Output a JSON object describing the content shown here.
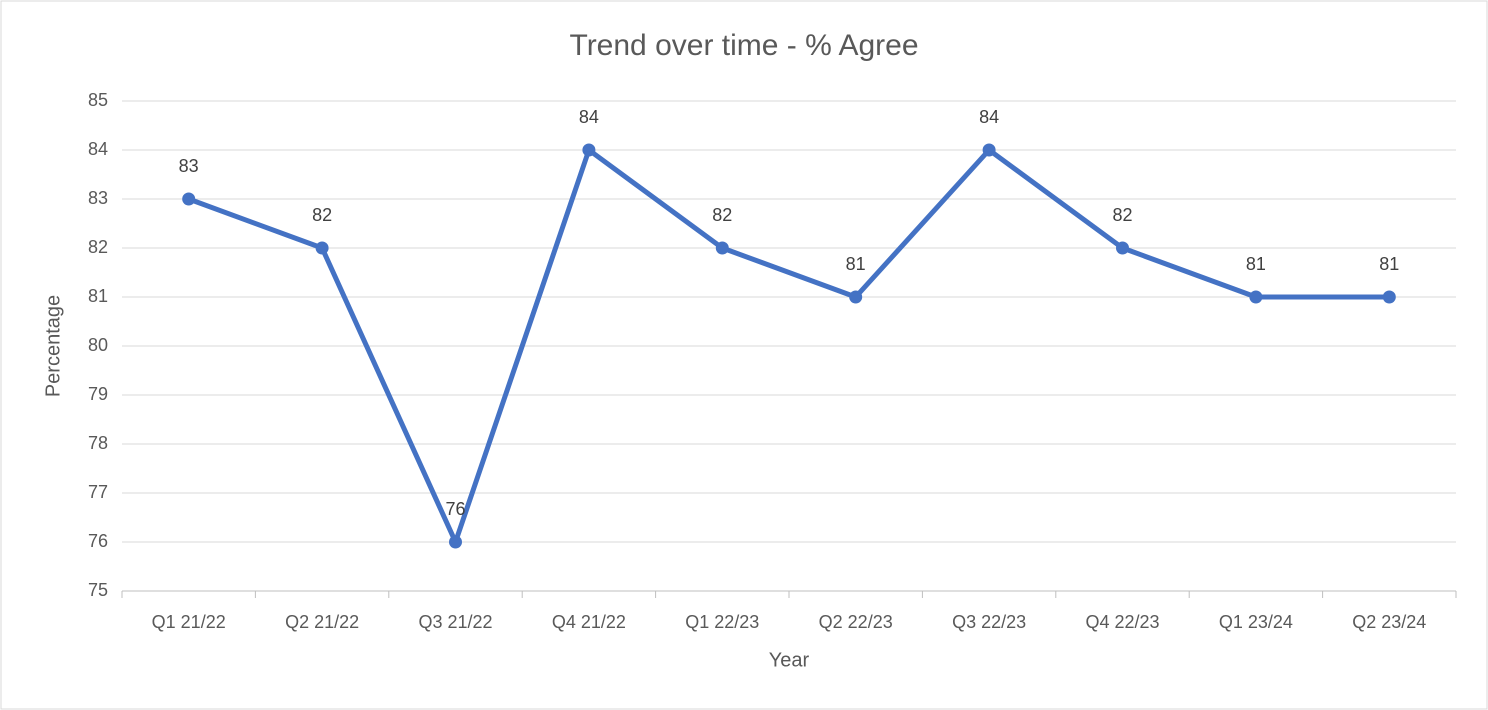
{
  "chart_data": {
    "type": "line",
    "title": "Trend over time - % Agree",
    "x_label": "Year",
    "y_label": "Percentage",
    "categories": [
      "Q1 21/22",
      "Q2 21/22",
      "Q3 21/22",
      "Q4 21/22",
      "Q1 22/23",
      "Q2 22/23",
      "Q3 22/23",
      "Q4 22/23",
      "Q1 23/24",
      "Q2 23/24"
    ],
    "values": [
      83,
      82,
      76,
      84,
      82,
      81,
      84,
      82,
      81,
      81
    ],
    "color": "#4472c4",
    "ylim": [
      75,
      85
    ],
    "yticks": [
      75,
      76,
      77,
      78,
      79,
      80,
      81,
      82,
      83,
      84,
      85
    ],
    "grid": true,
    "data_labels": true
  }
}
